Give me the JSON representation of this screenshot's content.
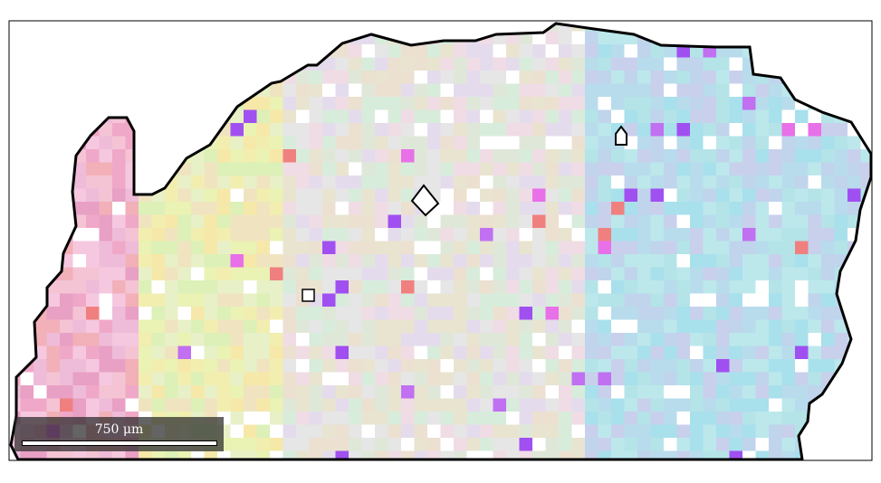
{
  "scale_bar": {
    "label": "750 μm"
  },
  "colors": {
    "boundary": "#000000",
    "scalebar_bg": "#282828",
    "frame": "#000000"
  }
}
